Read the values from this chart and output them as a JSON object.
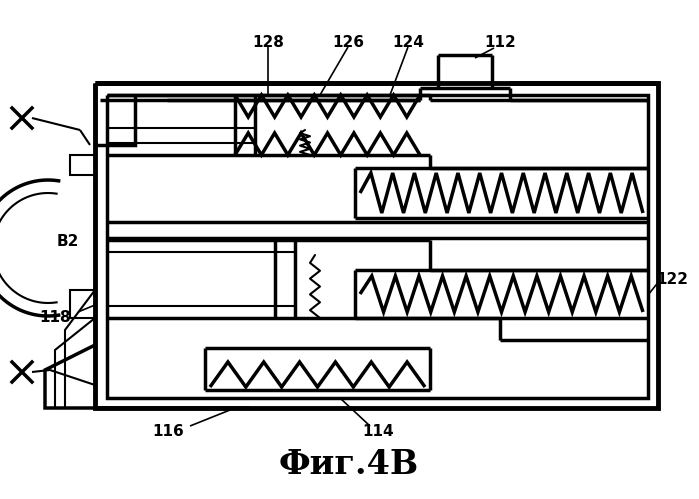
{
  "title": "Фиг.4В",
  "title_fontsize": 24,
  "bg_color": "#ffffff",
  "line_color": "#000000",
  "fig_width": 6.99,
  "fig_height": 4.99,
  "dpi": 100
}
